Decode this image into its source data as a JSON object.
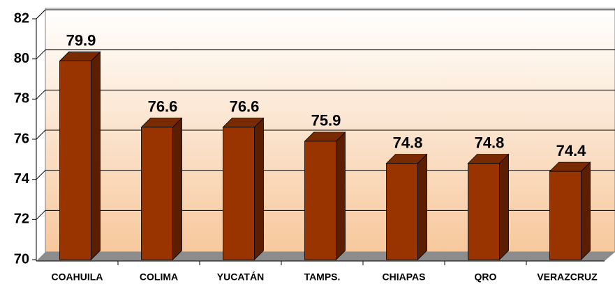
{
  "chart_data": {
    "type": "bar",
    "categories": [
      "COAHUILA",
      "COLIMA",
      "YUCATÁN",
      "TAMPS.",
      "CHIAPAS",
      "QRO",
      "VERAZCRUZ"
    ],
    "values": [
      79.9,
      76.6,
      76.6,
      75.9,
      74.8,
      74.8,
      74.4
    ],
    "color": "#993300",
    "ylim": [
      70,
      82
    ],
    "yticks": [
      70,
      72,
      74,
      76,
      78,
      80,
      82
    ],
    "grid": true
  }
}
